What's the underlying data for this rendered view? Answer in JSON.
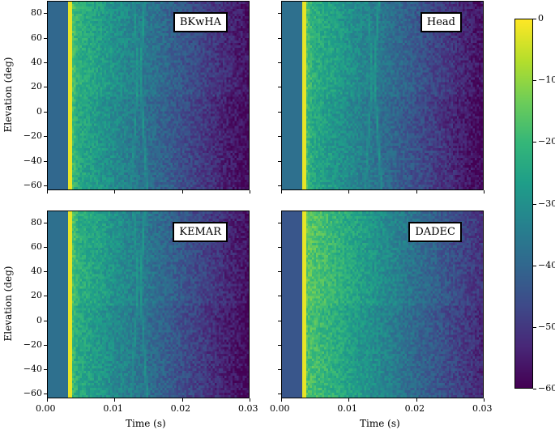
{
  "chart_data": {
    "type": "heatmap",
    "panels": [
      {
        "name": "BKwHA",
        "direct_sound_s": 0.0033,
        "baseline_db": -42
      },
      {
        "name": "Head",
        "direct_sound_s": 0.0033,
        "baseline_db": -40
      },
      {
        "name": "KEMAR",
        "direct_sound_s": 0.0033,
        "baseline_db": -40
      },
      {
        "name": "DADEC",
        "direct_sound_s": 0.0031,
        "baseline_db": -44
      }
    ],
    "xlabel": "Time (s)",
    "ylabel": "Elevation (deg)",
    "xlim": [
      0,
      0.03
    ],
    "ylim": [
      -64,
      90
    ],
    "xticks": [
      "0.00",
      "0.01",
      "0.02",
      "0.03"
    ],
    "yticks": [
      "80",
      "60",
      "40",
      "20",
      "0",
      "−20",
      "−40",
      "−60"
    ],
    "colorbar": {
      "range": [
        -60,
        0
      ],
      "ticks": [
        "0",
        "−10",
        "−20",
        "−30",
        "−40",
        "−50",
        "−60"
      ],
      "colormap": "viridis"
    }
  }
}
